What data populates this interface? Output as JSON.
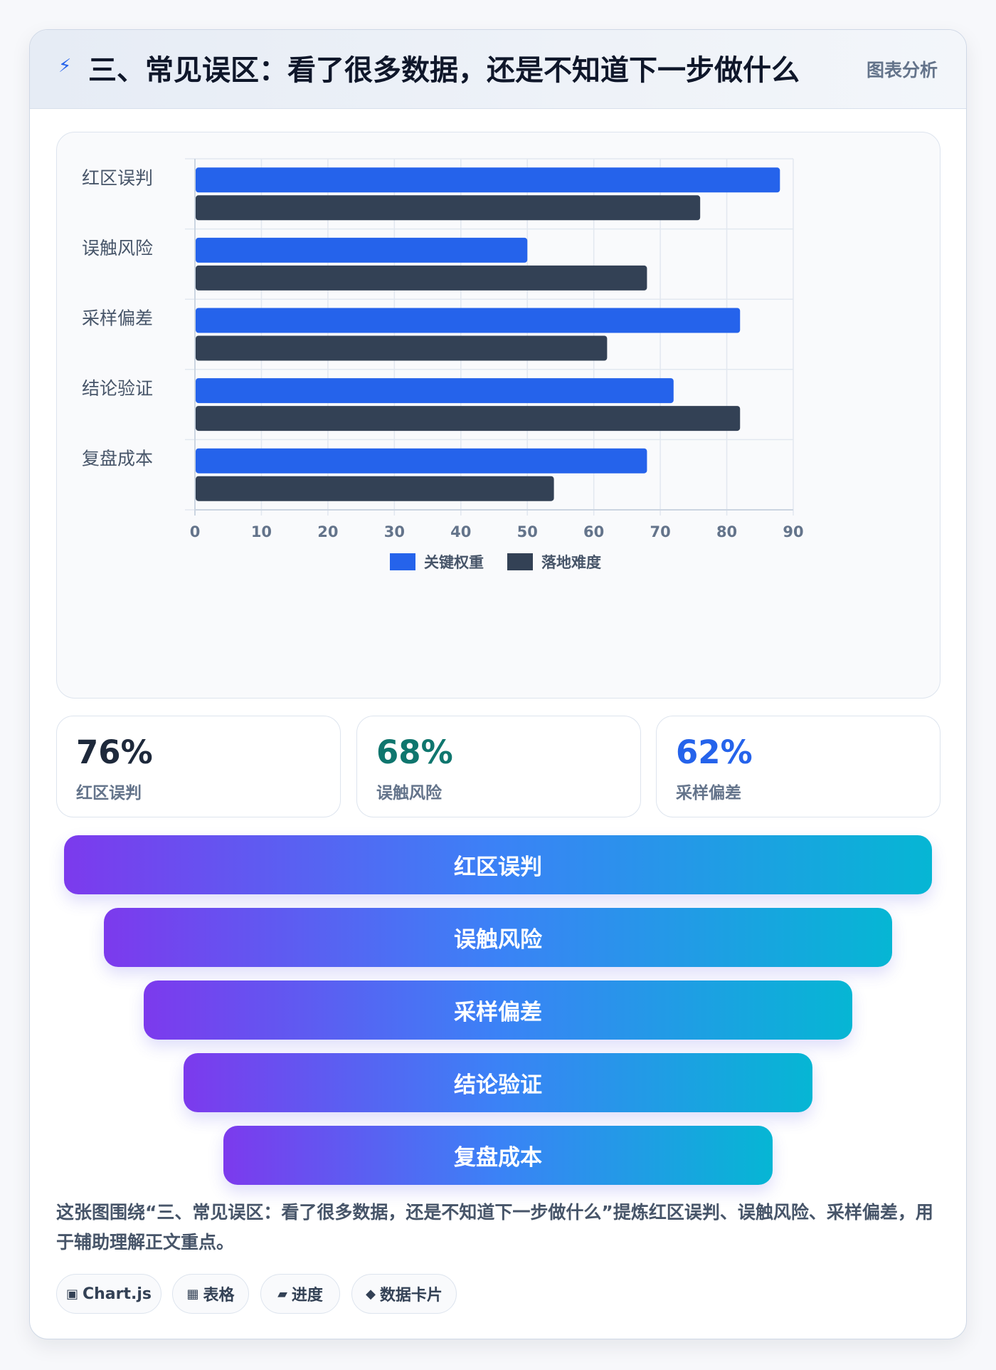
{
  "header": {
    "title": "三、常见误区：看了很多数据，还是不知道下一步做什么",
    "tag": "图表分析",
    "icon": "bolt-icon"
  },
  "chart_data": {
    "type": "bar",
    "orientation": "horizontal",
    "categories": [
      "红区误判",
      "误触风险",
      "采样偏差",
      "结论验证",
      "复盘成本"
    ],
    "series": [
      {
        "name": "关键权重",
        "color": "#2563eb",
        "values": [
          88,
          50,
          82,
          72,
          68
        ]
      },
      {
        "name": "落地难度",
        "color": "#334155",
        "values": [
          76,
          68,
          62,
          82,
          54
        ]
      }
    ],
    "xticks": [
      "0",
      "10",
      "20",
      "30",
      "40",
      "50",
      "60",
      "70",
      "80",
      "90"
    ],
    "xlim": [
      0,
      90
    ],
    "grid": true,
    "legend_position": "bottom"
  },
  "stats": [
    {
      "value": "76%",
      "label": "红区误判",
      "color": "#1e293b"
    },
    {
      "value": "68%",
      "label": "误触风险",
      "color": "#0f766e"
    },
    {
      "value": "62%",
      "label": "采样偏差",
      "color": "#2563eb"
    }
  ],
  "funnel": [
    "红区误判",
    "误触风险",
    "采样偏差",
    "结论验证",
    "复盘成本"
  ],
  "description": "这张图围绕“三、常见误区：看了很多数据，还是不知道下一步做什么”提炼红区误判、误触风险、采样偏差，用于辅助理解正文重点。",
  "chips": [
    {
      "icon": "▣",
      "label": "Chart.js"
    },
    {
      "icon": "▦",
      "label": "表格"
    },
    {
      "icon": "▰",
      "label": "进度"
    },
    {
      "icon": "◆",
      "label": "数据卡片"
    }
  ]
}
